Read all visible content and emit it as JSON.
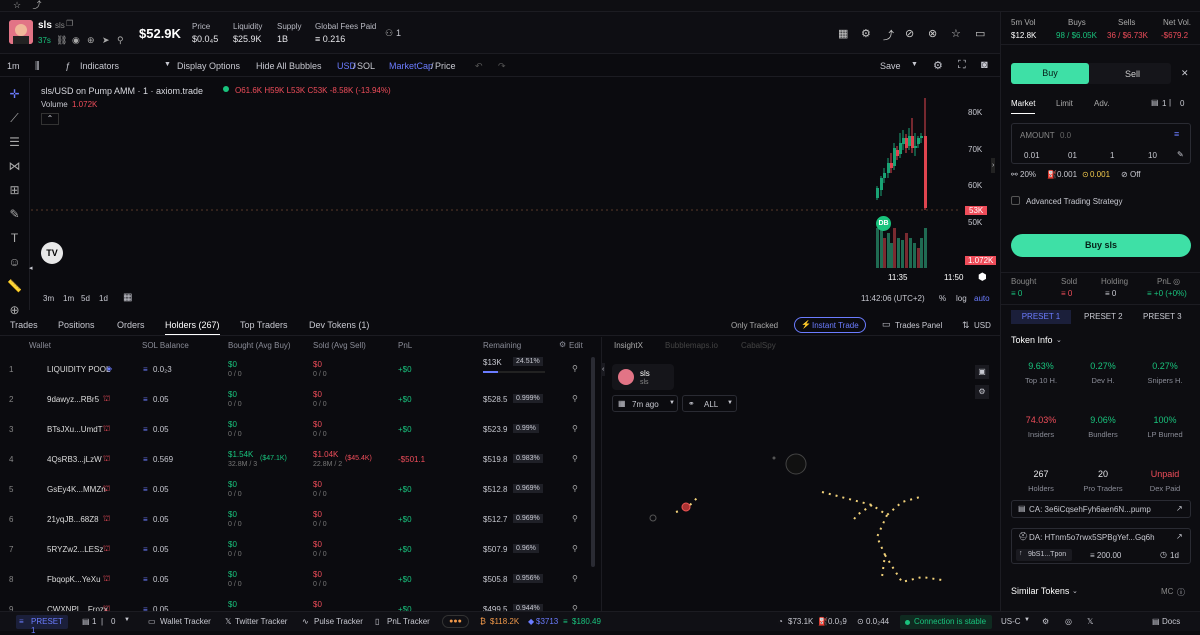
{
  "topbar": {
    "star": "☆",
    "chart": "⤴"
  },
  "token": {
    "name": "sls",
    "ticker": "sls",
    "age": "37s",
    "mcap": "$52.9K"
  },
  "header_stats": [
    {
      "label": "Price",
      "value": "$0.0₄5"
    },
    {
      "label": "Liquidity",
      "value": "$25.9K"
    },
    {
      "label": "Supply",
      "value": "1B"
    },
    {
      "label": "Global Fees Paid",
      "value": "≡ 0.216"
    }
  ],
  "holders_icon_count": "1",
  "toolbar": {
    "interval": "1m",
    "indicators": "Indicators",
    "display": "Display Options",
    "hide": "Hide All Bubbles",
    "usd": "USD",
    "sol": "SOL",
    "mcap": "MarketCap",
    "price": "Price",
    "save": "Save"
  },
  "chart_legend": {
    "pair": "sls/USD on Pump AMM · 1 · axiom.trade",
    "ohlc": "O61.6K H59K L53K C53K -8.58K (-13.94%)",
    "volume_label": "Volume",
    "volume_value": "1.072K"
  },
  "chart_data": {
    "type": "candlestick",
    "y_ticks": [
      "80K",
      "70K",
      "60K",
      "50K"
    ],
    "x_ticks": [
      "11:35",
      "11:50"
    ],
    "last_price_label": "53K",
    "volume_badge": "1.072K",
    "marker": "DB"
  },
  "chart_footer": {
    "ranges": [
      "3m",
      "1m",
      "5d",
      "1d"
    ],
    "time": "11:42:06 (UTC+2)",
    "pct": "%",
    "log": "log",
    "auto": "auto"
  },
  "tabs": {
    "trades": "Trades",
    "positions": "Positions",
    "orders": "Orders",
    "holders": "Holders (267)",
    "top": "Top Traders",
    "dev": "Dev Tokens (1)",
    "only_tracked": "Only Tracked",
    "instant": "Instant Trade",
    "trades_panel": "Trades Panel",
    "usd": "USD"
  },
  "table_headers": {
    "wallet": "Wallet",
    "sol": "SOL Balance",
    "bought": "Bought (Avg Buy)",
    "sold": "Sold (Avg Sell)",
    "pnl": "PnL",
    "remaining": "Remaining",
    "edit": "Edit"
  },
  "rows": [
    {
      "n": "1",
      "wallet": "LIQUIDITY POOL",
      "sol": "0.0₂3",
      "bought": "$0",
      "bsub": "0 / 0",
      "sold": "$0",
      "ssub": "0 / 0",
      "pnl": "+$0",
      "rem": "$13K",
      "pct": "24.51%"
    },
    {
      "n": "2",
      "wallet": "9dawyz...RBr5",
      "sol": "0.05",
      "bought": "$0",
      "bsub": "0 / 0",
      "sold": "$0",
      "ssub": "0 / 0",
      "pnl": "+$0",
      "rem": "$528.5",
      "pct": "0.999%"
    },
    {
      "n": "3",
      "wallet": "BTsJXu...UmdT",
      "sol": "0.05",
      "bought": "$0",
      "bsub": "0 / 0",
      "sold": "$0",
      "ssub": "0 / 0",
      "pnl": "+$0",
      "rem": "$523.9",
      "pct": "0.99%"
    },
    {
      "n": "4",
      "wallet": "4QsRB3...jLzW",
      "sol": "0.569",
      "bought": "$1.54K",
      "bsub": "32.8M / 3",
      "bavg": "($47.1K)",
      "sold": "$1.04K",
      "ssub": "22.8M / 2",
      "savg": "($45.4K)",
      "pnl": "-$501.1",
      "rem": "$519.8",
      "pct": "0.983%"
    },
    {
      "n": "5",
      "wallet": "GsEy4K...MMZn",
      "sol": "0.05",
      "bought": "$0",
      "bsub": "0 / 0",
      "sold": "$0",
      "ssub": "0 / 0",
      "pnl": "+$0",
      "rem": "$512.8",
      "pct": "0.969%"
    },
    {
      "n": "6",
      "wallet": "21yqJB...68Z8",
      "sol": "0.05",
      "bought": "$0",
      "bsub": "0 / 0",
      "sold": "$0",
      "ssub": "0 / 0",
      "pnl": "+$0",
      "rem": "$512.7",
      "pct": "0.969%"
    },
    {
      "n": "7",
      "wallet": "5RYZw2...LESz",
      "sol": "0.05",
      "bought": "$0",
      "bsub": "0 / 0",
      "sold": "$0",
      "ssub": "0 / 0",
      "pnl": "+$0",
      "rem": "$507.9",
      "pct": "0.96%"
    },
    {
      "n": "8",
      "wallet": "FbqopK...YeXu",
      "sol": "0.05",
      "bought": "$0",
      "bsub": "0 / 0",
      "sold": "$0",
      "ssub": "0 / 0",
      "pnl": "+$0",
      "rem": "$505.8",
      "pct": "0.956%"
    },
    {
      "n": "9",
      "wallet": "CWXNPL...Frozx",
      "sol": "0.05",
      "bought": "$0",
      "bsub": "",
      "sold": "$0",
      "ssub": "",
      "pnl": "+$0",
      "rem": "$499.5",
      "pct": "0.944%"
    }
  ],
  "insight": {
    "tabs": [
      "InsightX",
      "Bubblemaps.io",
      "CabalSpy"
    ],
    "token": "sls",
    "time": "7m ago",
    "all": "ALL"
  },
  "right": {
    "vol_label": "5m Vol",
    "vol": "$12.8K",
    "buys_label": "Buys",
    "buys": "98 / $6.05K",
    "sells_label": "Sells",
    "sells": "36 / $6.73K",
    "net_label": "Net Vol.",
    "net": "-$679.2",
    "buy": "Buy",
    "sell": "Sell",
    "market": "Market",
    "limit": "Limit",
    "adv": "Adv.",
    "count": "1",
    "count2": "0",
    "amount": "AMOUNT",
    "amount_val": "0.0",
    "presets": [
      "0.01",
      "01",
      "1",
      "10"
    ],
    "slippage": "20%",
    "prio": "0.001",
    "bribe": "0.001",
    "mev": "Off",
    "advanced": "Advanced Trading Strategy",
    "buy_btn": "Buy sls",
    "pos": [
      {
        "l": "Bought",
        "v": "≡ 0"
      },
      {
        "l": "Sold",
        "v": "≡ 0"
      },
      {
        "l": "Holding",
        "v": "≡ 0"
      },
      {
        "l": "PnL ◎",
        "v": "≡ +0 (+0%)"
      }
    ],
    "preset_tabs": [
      "PRESET 1",
      "PRESET 2",
      "PRESET 3"
    ],
    "token_info": "Token Info",
    "cards": [
      {
        "v": "9.63%",
        "l": "Top 10 H.",
        "c": "g"
      },
      {
        "v": "0.27%",
        "l": "Dev H.",
        "c": "g"
      },
      {
        "v": "0.27%",
        "l": "Snipers H.",
        "c": "g"
      },
      {
        "v": "74.03%",
        "l": "Insiders",
        "c": "r"
      },
      {
        "v": "9.06%",
        "l": "Bundlers",
        "c": "g"
      },
      {
        "v": "100%",
        "l": "LP Burned",
        "c": "g"
      },
      {
        "v": "267",
        "l": "Holders",
        "c": "w"
      },
      {
        "v": "20",
        "l": "Pro Traders",
        "c": "w"
      },
      {
        "v": "Unpaid",
        "l": "Dex Paid",
        "c": "r"
      }
    ],
    "ca": "CA: 3e6iCqsehFyh6aen6N...pump",
    "da": "DA: HTnm5o7rwx5SPBgYef...Gq6h",
    "dev_wallet": "9bS1...Tpon",
    "dev_sol": "≡ 200.00",
    "dev_age": "1d",
    "similar": "Similar Tokens",
    "mc": "MC"
  },
  "status": {
    "preset": "PRESET 1",
    "p1": "1",
    "p2": "0",
    "wallet": "Wallet Tracker",
    "twitter": "Twitter Tracker",
    "pulse": "Pulse Tracker",
    "pnl": "PnL Tracker",
    "btc": "$118.2K",
    "eth": "$3713",
    "sol": "$180.49",
    "s1": "$73.1K",
    "s2": "0.0₃9",
    "s3": "0.0₂44",
    "conn": "Connection is stable",
    "region": "US-C",
    "docs": "Docs"
  }
}
